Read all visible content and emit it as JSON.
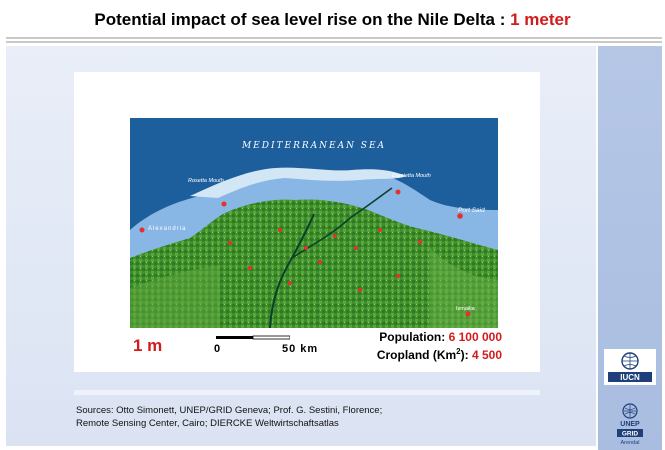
{
  "title": {
    "main": "Potential impact of sea level rise on the Nile Delta : ",
    "accent": "1 meter"
  },
  "map": {
    "sea_label": "MEDITERRANEAN SEA",
    "places": [
      {
        "name": "Rosetta Mouth"
      },
      {
        "name": "Damietta Mouth"
      },
      {
        "name": "Port Said"
      },
      {
        "name": "Alexandria"
      },
      {
        "name": "Ismailia"
      }
    ]
  },
  "scale": {
    "rise_label": "1 m",
    "zero": "0",
    "distance": "50 km"
  },
  "stats": {
    "population_label": "Population:",
    "population_value": "6 100 000",
    "cropland_label": "Cropland (Km",
    "cropland_sup": "2",
    "cropland_suffix": "):",
    "cropland_value": "4 500"
  },
  "sources": {
    "line1": "Sources: Otto Simonett, UNEP/GRID Geneva; Prof. G. Sestini, Florence;",
    "line2": "Remote Sensing Center, Cairo; DIERCKE Weltwirtschaftsatlas"
  },
  "logos": {
    "iucn": "IUCN",
    "unep": "UNEP",
    "grid": "GRID",
    "arendal": "Arendal"
  },
  "colors": {
    "accent": "#d21b1b",
    "sea": "#1d5f9c",
    "flooded": "#88b7e6",
    "land": "#3a8a2a"
  }
}
